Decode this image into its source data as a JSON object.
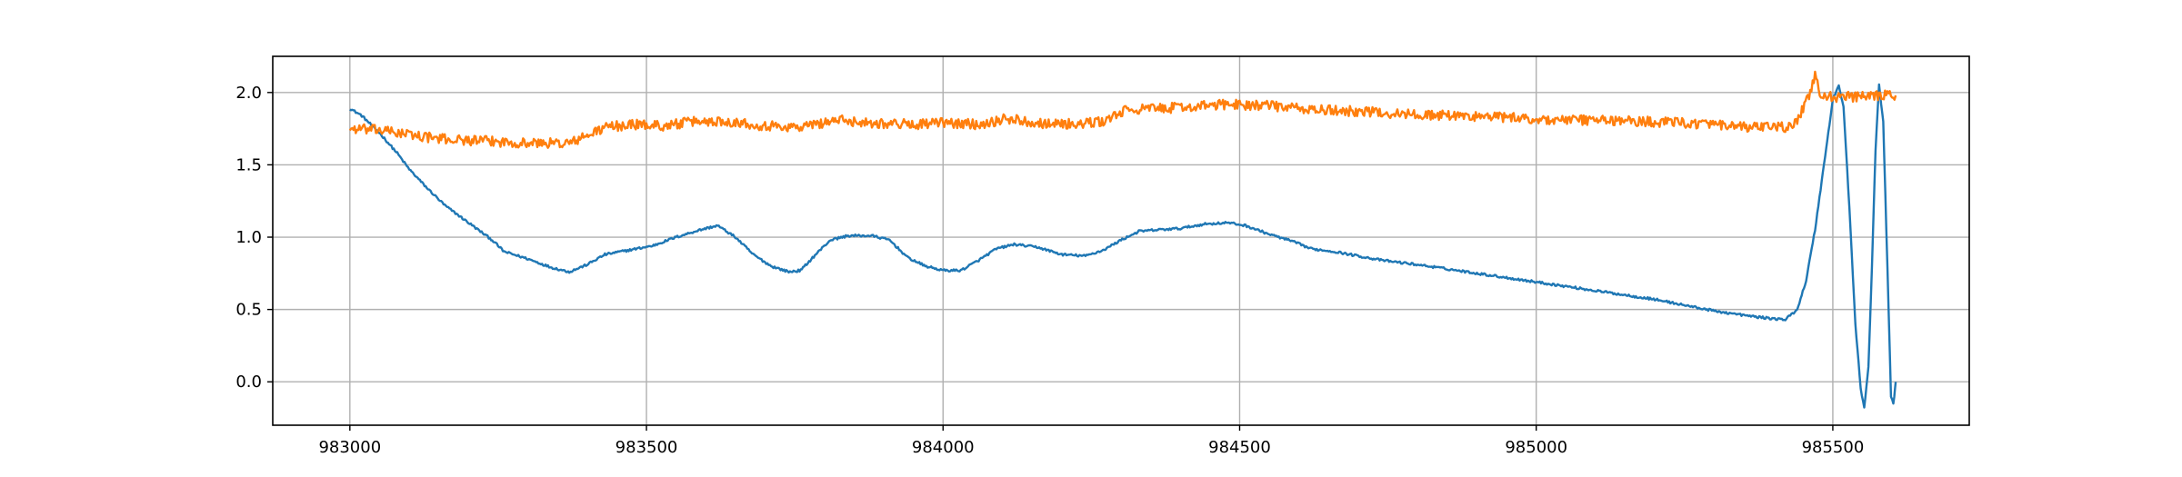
{
  "chart_data": {
    "type": "line",
    "title": "",
    "xlabel": "",
    "ylabel": "",
    "xlim": [
      982870,
      985730
    ],
    "ylim": [
      -0.3,
      2.25
    ],
    "grid": true,
    "x_ticks": [
      983000,
      983500,
      984000,
      984500,
      985000,
      985500
    ],
    "x_tick_labels": [
      "983000",
      "983500",
      "984000",
      "984500",
      "985000",
      "985500"
    ],
    "y_ticks": [
      0.0,
      0.5,
      1.0,
      1.5,
      2.0
    ],
    "y_tick_labels": [
      "0.0",
      "0.5",
      "1.0",
      "1.5",
      "2.0"
    ],
    "series": [
      {
        "color": "#1f77b4",
        "noise": 0.008,
        "points": [
          [
            983000,
            1.89
          ],
          [
            983020,
            1.84
          ],
          [
            983050,
            1.72
          ],
          [
            983080,
            1.58
          ],
          [
            983100,
            1.47
          ],
          [
            983130,
            1.34
          ],
          [
            983160,
            1.22
          ],
          [
            983200,
            1.1
          ],
          [
            983240,
            0.98
          ],
          [
            983260,
            0.9
          ],
          [
            983300,
            0.85
          ],
          [
            983340,
            0.79
          ],
          [
            983370,
            0.76
          ],
          [
            983400,
            0.81
          ],
          [
            983430,
            0.88
          ],
          [
            983470,
            0.91
          ],
          [
            983510,
            0.94
          ],
          [
            983550,
            1.0
          ],
          [
            983590,
            1.05
          ],
          [
            983620,
            1.08
          ],
          [
            983650,
            1.0
          ],
          [
            983680,
            0.88
          ],
          [
            983710,
            0.8
          ],
          [
            983740,
            0.76
          ],
          [
            983760,
            0.77
          ],
          [
            983790,
            0.9
          ],
          [
            983810,
            0.98
          ],
          [
            983840,
            1.01
          ],
          [
            983880,
            1.01
          ],
          [
            983910,
            0.98
          ],
          [
            983940,
            0.86
          ],
          [
            983970,
            0.8
          ],
          [
            984000,
            0.77
          ],
          [
            984030,
            0.77
          ],
          [
            984060,
            0.84
          ],
          [
            984090,
            0.92
          ],
          [
            984120,
            0.95
          ],
          [
            984160,
            0.93
          ],
          [
            984200,
            0.88
          ],
          [
            984240,
            0.87
          ],
          [
            984270,
            0.91
          ],
          [
            984300,
            0.98
          ],
          [
            984330,
            1.04
          ],
          [
            984360,
            1.05
          ],
          [
            984400,
            1.06
          ],
          [
            984440,
            1.09
          ],
          [
            984480,
            1.1
          ],
          [
            984510,
            1.08
          ],
          [
            984550,
            1.02
          ],
          [
            984590,
            0.97
          ],
          [
            984620,
            0.92
          ],
          [
            984660,
            0.9
          ],
          [
            984700,
            0.87
          ],
          [
            984740,
            0.84
          ],
          [
            984800,
            0.81
          ],
          [
            984850,
            0.78
          ],
          [
            984900,
            0.75
          ],
          [
            984950,
            0.72
          ],
          [
            985000,
            0.69
          ],
          [
            985050,
            0.66
          ],
          [
            985100,
            0.63
          ],
          [
            985150,
            0.6
          ],
          [
            985200,
            0.57
          ],
          [
            985250,
            0.53
          ],
          [
            985300,
            0.49
          ],
          [
            985350,
            0.46
          ],
          [
            985390,
            0.44
          ],
          [
            985420,
            0.43
          ],
          [
            985440,
            0.5
          ],
          [
            985455,
            0.7
          ],
          [
            985470,
            1.05
          ],
          [
            985485,
            1.5
          ],
          [
            985500,
            1.95
          ],
          [
            985510,
            2.05
          ],
          [
            985518,
            1.9
          ],
          [
            985528,
            1.2
          ],
          [
            985538,
            0.4
          ],
          [
            985547,
            -0.05
          ],
          [
            985553,
            -0.18
          ],
          [
            985560,
            0.1
          ],
          [
            985566,
            0.8
          ],
          [
            985572,
            1.6
          ],
          [
            985578,
            2.05
          ],
          [
            985585,
            1.8
          ],
          [
            985592,
            0.8
          ],
          [
            985598,
            -0.1
          ],
          [
            985602,
            -0.15
          ],
          [
            985605,
            -0.05
          ],
          [
            985606,
            0.0
          ]
        ]
      },
      {
        "color": "#ff7f0e",
        "noise": 0.035,
        "points": [
          [
            983000,
            1.75
          ],
          [
            983050,
            1.74
          ],
          [
            983100,
            1.71
          ],
          [
            983150,
            1.68
          ],
          [
            983200,
            1.67
          ],
          [
            983250,
            1.66
          ],
          [
            983300,
            1.65
          ],
          [
            983370,
            1.65
          ],
          [
            983400,
            1.7
          ],
          [
            983430,
            1.76
          ],
          [
            983480,
            1.78
          ],
          [
            983530,
            1.77
          ],
          [
            983580,
            1.8
          ],
          [
            983640,
            1.8
          ],
          [
            983700,
            1.77
          ],
          [
            983760,
            1.76
          ],
          [
            983820,
            1.81
          ],
          [
            983880,
            1.79
          ],
          [
            983950,
            1.78
          ],
          [
            984000,
            1.79
          ],
          [
            984060,
            1.78
          ],
          [
            984110,
            1.82
          ],
          [
            984160,
            1.79
          ],
          [
            984230,
            1.78
          ],
          [
            984270,
            1.8
          ],
          [
            984310,
            1.88
          ],
          [
            984360,
            1.89
          ],
          [
            984420,
            1.9
          ],
          [
            984480,
            1.92
          ],
          [
            984550,
            1.91
          ],
          [
            984620,
            1.88
          ],
          [
            984700,
            1.87
          ],
          [
            984780,
            1.85
          ],
          [
            984860,
            1.84
          ],
          [
            984940,
            1.83
          ],
          [
            985020,
            1.81
          ],
          [
            985100,
            1.81
          ],
          [
            985180,
            1.8
          ],
          [
            985260,
            1.79
          ],
          [
            985340,
            1.76
          ],
          [
            985420,
            1.76
          ],
          [
            985440,
            1.8
          ],
          [
            985460,
            1.98
          ],
          [
            985470,
            2.11
          ],
          [
            985480,
            1.98
          ],
          [
            985500,
            1.97
          ],
          [
            985530,
            1.97
          ],
          [
            985560,
            1.97
          ],
          [
            985590,
            1.98
          ],
          [
            985606,
            1.98
          ]
        ]
      }
    ]
  }
}
